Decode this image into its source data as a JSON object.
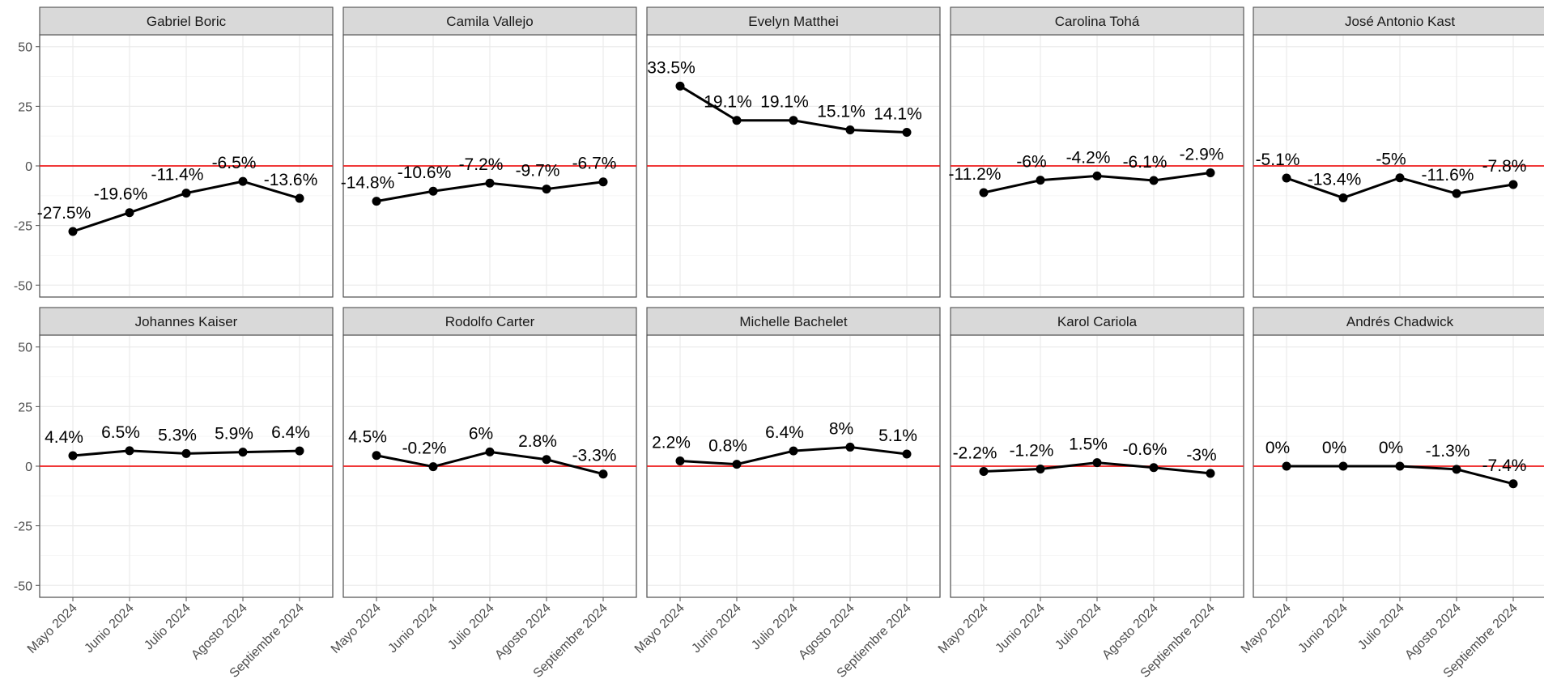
{
  "chart_data": {
    "type": "line",
    "facet_layout": "2 rows x 5 columns",
    "x": [
      "Mayo 2024",
      "Junio 2024",
      "Julio 2024",
      "Agosto 2024",
      "Septiembre 2024"
    ],
    "ylim": [
      -55,
      55
    ],
    "y_ticks": [
      -50,
      -25,
      0,
      25,
      50
    ],
    "reference_line": {
      "y": 0,
      "color": "#ee1c1c"
    },
    "grid": true,
    "series_color": "#000000",
    "panels": [
      {
        "name": "Gabriel Boric",
        "values": [
          -27.5,
          -19.6,
          -11.4,
          -6.5,
          -13.6
        ],
        "labels": [
          "-27.5%",
          "-19.6%",
          "-11.4%",
          "-6.5%",
          "-13.6%"
        ]
      },
      {
        "name": "Camila Vallejo",
        "values": [
          -14.8,
          -10.6,
          -7.2,
          -9.7,
          -6.7
        ],
        "labels": [
          "-14.8%",
          "-10.6%",
          "-7.2%",
          "-9.7%",
          "-6.7%"
        ]
      },
      {
        "name": "Evelyn Matthei",
        "values": [
          33.5,
          19.1,
          19.1,
          15.1,
          14.1
        ],
        "labels": [
          "33.5%",
          "19.1%",
          "19.1%",
          "15.1%",
          "14.1%"
        ]
      },
      {
        "name": "Carolina Tohá",
        "values": [
          -11.2,
          -6,
          -4.2,
          -6.1,
          -2.9
        ],
        "labels": [
          "-11.2%",
          "-6%",
          "-4.2%",
          "-6.1%",
          "-2.9%"
        ]
      },
      {
        "name": "José Antonio Kast",
        "values": [
          -5.1,
          -13.4,
          -5,
          -11.6,
          -7.8
        ],
        "labels": [
          "-5.1%",
          "-13.4%",
          "-5%",
          "-11.6%",
          "-7.8%"
        ]
      },
      {
        "name": "Johannes Kaiser",
        "values": [
          4.4,
          6.5,
          5.3,
          5.9,
          6.4
        ],
        "labels": [
          "4.4%",
          "6.5%",
          "5.3%",
          "5.9%",
          "6.4%"
        ]
      },
      {
        "name": "Rodolfo Carter",
        "values": [
          4.5,
          -0.2,
          6,
          2.8,
          -3.3
        ],
        "labels": [
          "4.5%",
          "-0.2%",
          "6%",
          "2.8%",
          "-3.3%"
        ]
      },
      {
        "name": "Michelle Bachelet",
        "values": [
          2.2,
          0.8,
          6.4,
          8,
          5.1
        ],
        "labels": [
          "2.2%",
          "0.8%",
          "6.4%",
          "8%",
          "5.1%"
        ]
      },
      {
        "name": "Karol Cariola",
        "values": [
          -2.2,
          -1.2,
          1.5,
          -0.6,
          -3
        ],
        "labels": [
          "-2.2%",
          "-1.2%",
          "1.5%",
          "-0.6%",
          "-3%"
        ]
      },
      {
        "name": "Andrés Chadwick",
        "values": [
          0,
          0,
          0,
          -1.3,
          -7.4
        ],
        "labels": [
          "0%",
          "0%",
          "0%",
          "-1.3%",
          "-7.4%"
        ]
      }
    ]
  }
}
